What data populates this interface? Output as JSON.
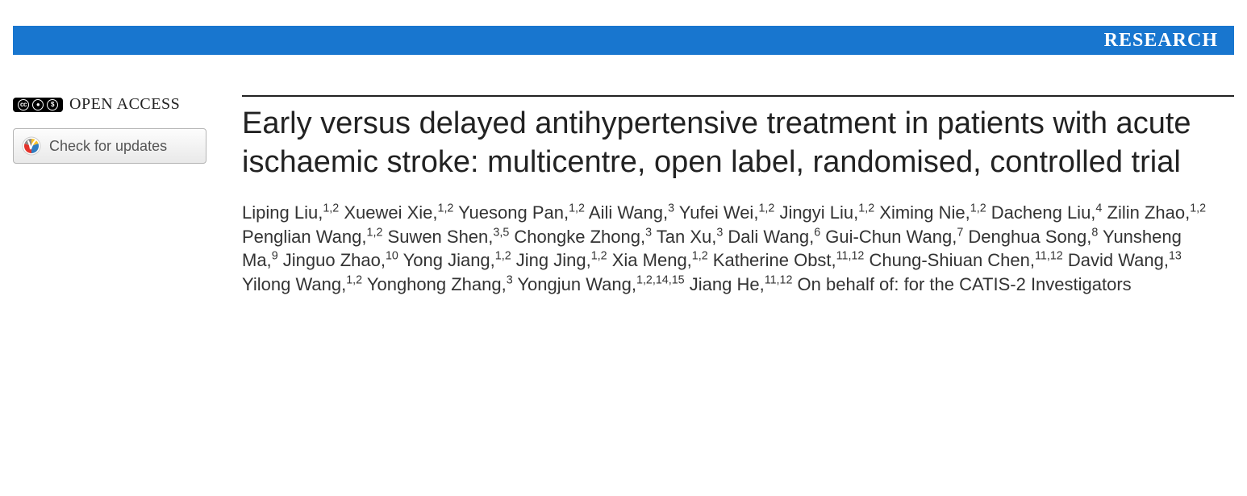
{
  "banner": {
    "label": "RESEARCH",
    "background_color": "#1876cf",
    "text_color": "#ffffff"
  },
  "sidebar": {
    "open_access_label": "OPEN ACCESS",
    "cc_symbols": [
      "cc",
      "by",
      "nc"
    ],
    "check_updates_label": "Check for updates"
  },
  "article": {
    "title": "Early versus delayed antihypertensive treatment in patients with acute ischaemic stroke: multicentre, open label, randomised, controlled trial",
    "authors": [
      {
        "name": "Liping Liu",
        "affil": "1,2"
      },
      {
        "name": "Xuewei Xie",
        "affil": "1,2"
      },
      {
        "name": "Yuesong Pan",
        "affil": "1,2"
      },
      {
        "name": "Aili Wang",
        "affil": "3"
      },
      {
        "name": "Yufei Wei",
        "affil": "1,2"
      },
      {
        "name": "Jingyi Liu",
        "affil": "1,2"
      },
      {
        "name": "Ximing Nie",
        "affil": "1,2"
      },
      {
        "name": "Dacheng Liu",
        "affil": "4"
      },
      {
        "name": "Zilin Zhao",
        "affil": "1,2"
      },
      {
        "name": "Penglian Wang",
        "affil": "1,2"
      },
      {
        "name": "Suwen Shen",
        "affil": "3,5"
      },
      {
        "name": "Chongke Zhong",
        "affil": "3"
      },
      {
        "name": "Tan Xu",
        "affil": "3"
      },
      {
        "name": "Dali Wang",
        "affil": "6"
      },
      {
        "name": "Gui-Chun Wang",
        "affil": "7"
      },
      {
        "name": "Denghua Song",
        "affil": "8"
      },
      {
        "name": "Yunsheng Ma",
        "affil": "9"
      },
      {
        "name": "Jinguo Zhao",
        "affil": "10"
      },
      {
        "name": "Yong Jiang",
        "affil": "1,2"
      },
      {
        "name": "Jing Jing",
        "affil": "1,2"
      },
      {
        "name": "Xia Meng",
        "affil": "1,2"
      },
      {
        "name": "Katherine Obst",
        "affil": "11,12"
      },
      {
        "name": "Chung-Shiuan Chen",
        "affil": "11,12"
      },
      {
        "name": "David Wang",
        "affil": "13"
      },
      {
        "name": "Yilong Wang",
        "affil": "1,2"
      },
      {
        "name": "Yonghong Zhang",
        "affil": "3"
      },
      {
        "name": "Yongjun Wang",
        "affil": "1,2,14,15"
      },
      {
        "name": "Jiang He",
        "affil": "11,12"
      }
    ],
    "on_behalf": "On behalf of: for the CATIS-2 Investigators"
  },
  "colors": {
    "rule": "#222222",
    "text": "#333333",
    "crossmark_red": "#e4332b",
    "crossmark_yellow": "#f7c12b",
    "crossmark_blue": "#2f7cc0"
  }
}
